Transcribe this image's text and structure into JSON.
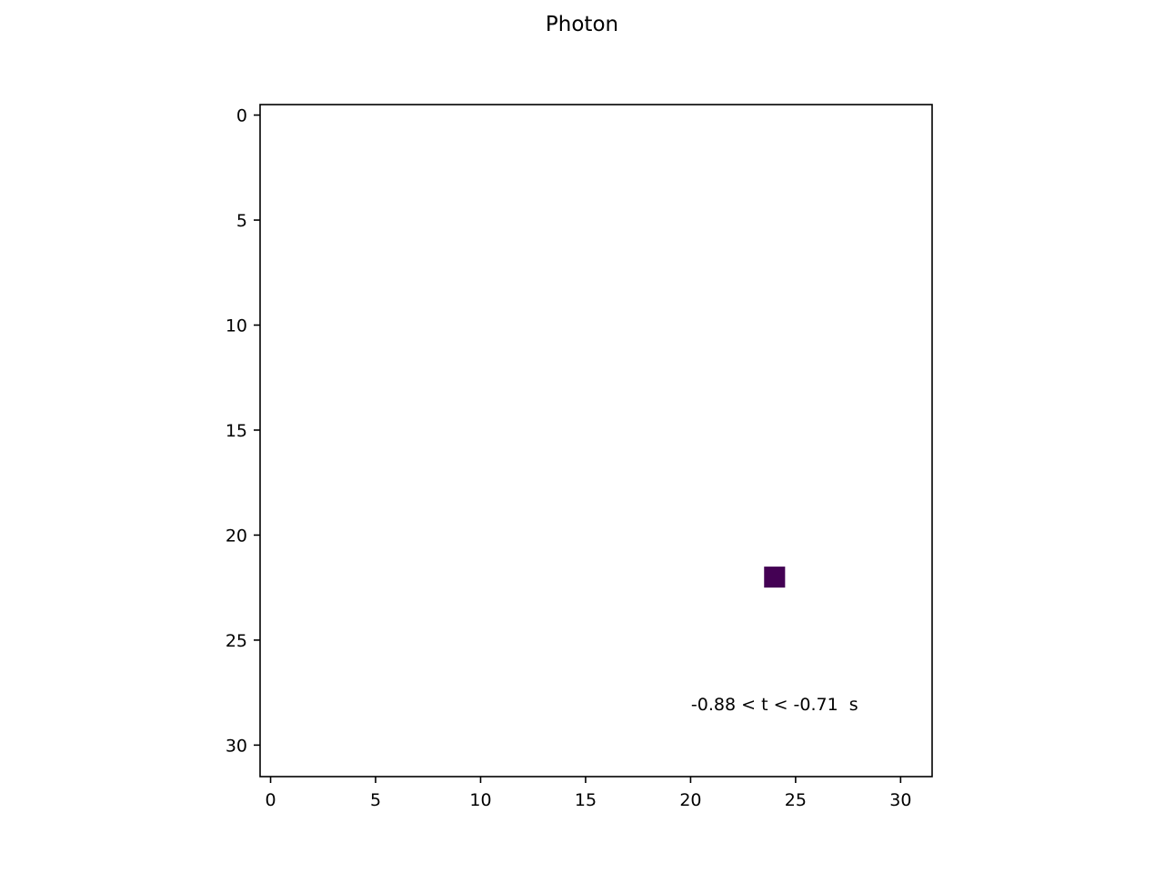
{
  "chart_data": {
    "type": "heatmap",
    "title": "Photon",
    "xlabel": "",
    "ylabel": "",
    "xlim": [
      -0.5,
      31.5
    ],
    "ylim": [
      31.5,
      -0.5
    ],
    "y_inverted": true,
    "x_ticks": [
      0,
      5,
      10,
      15,
      20,
      25,
      30
    ],
    "y_ticks": [
      0,
      5,
      10,
      15,
      20,
      25,
      30
    ],
    "grid": false,
    "colormap": "viridis",
    "background_color": "#ffffff",
    "cells": [
      {
        "x": 24,
        "y": 22,
        "color": "#440154"
      }
    ],
    "annotation": {
      "text": "-0.88 < t < -0.71  s",
      "x": 24,
      "y": 28
    }
  }
}
